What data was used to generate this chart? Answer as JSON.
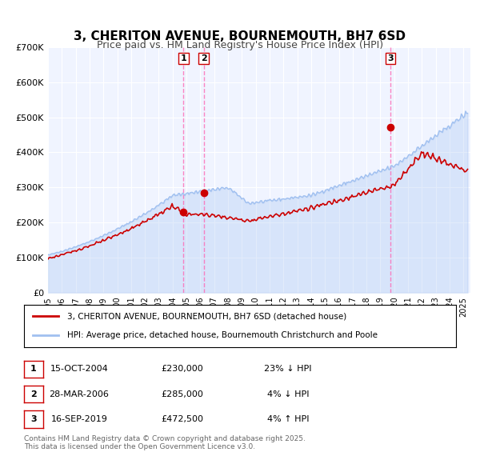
{
  "title": "3, CHERITON AVENUE, BOURNEMOUTH, BH7 6SD",
  "subtitle": "Price paid vs. HM Land Registry's House Price Index (HPI)",
  "title_fontsize": 11,
  "subtitle_fontsize": 9,
  "bg_color": "#f0f4ff",
  "plot_bg_color": "#f0f4ff",
  "hpi_color": "#a0c0f0",
  "price_color": "#cc0000",
  "ylim": [
    0,
    700000
  ],
  "yticks": [
    0,
    100000,
    200000,
    300000,
    400000,
    500000,
    600000,
    700000
  ],
  "ytick_labels": [
    "£0",
    "£100K",
    "£200K",
    "£300K",
    "£400K",
    "£500K",
    "£600K",
    "£700K"
  ],
  "sale_dates": [
    2004.79,
    2006.24,
    2019.71
  ],
  "sale_prices": [
    230000,
    285000,
    472500
  ],
  "sale_labels": [
    "1",
    "2",
    "3"
  ],
  "vline_color": "#ff69b4",
  "legend_entries": [
    "3, CHERITON AVENUE, BOURNEMOUTH, BH7 6SD (detached house)",
    "HPI: Average price, detached house, Bournemouth Christchurch and Poole"
  ],
  "table_rows": [
    [
      "1",
      "15-OCT-2004",
      "£230,000",
      "23% ↓ HPI"
    ],
    [
      "2",
      "28-MAR-2006",
      "£285,000",
      "4% ↓ HPI"
    ],
    [
      "3",
      "16-SEP-2019",
      "£472,500",
      "4% ↑ HPI"
    ]
  ],
  "footer": "Contains HM Land Registry data © Crown copyright and database right 2025.\nThis data is licensed under the Open Government Licence v3.0.",
  "xstart": 1995,
  "xend": 2025.5
}
